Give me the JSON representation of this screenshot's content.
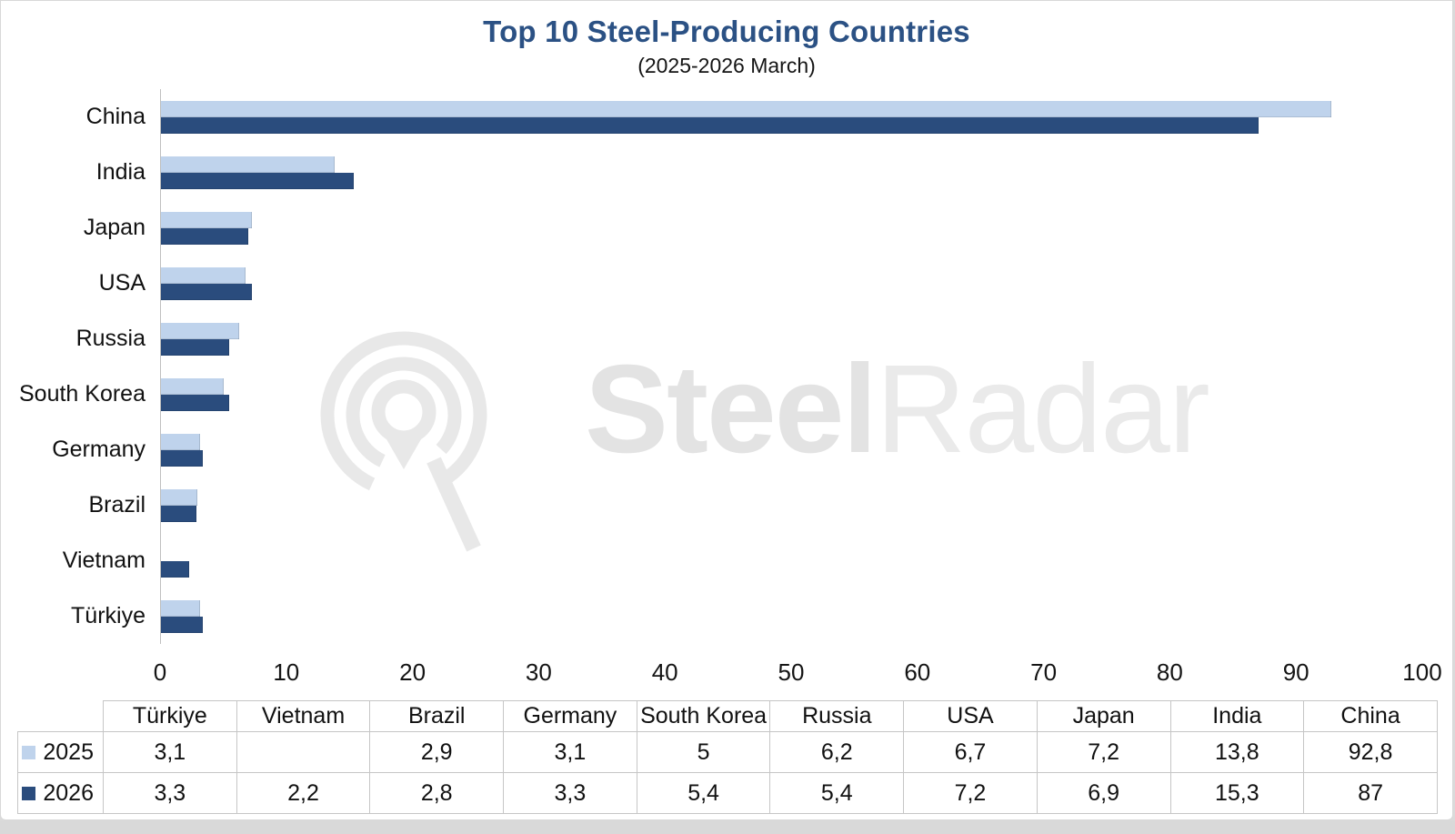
{
  "title": "Top 10 Steel-Producing Countries",
  "subtitle": "(2025-2026 March)",
  "watermark": {
    "text_bold": "Steel",
    "text_light": "Radar",
    "logo": "radar-q-logo"
  },
  "colors": {
    "title": "#2B5184",
    "series_2025": "#BFD3EC",
    "series_2026": "#2A4C7D",
    "axis_line": "#BFBFBF",
    "table_border": "#C6C6C6",
    "watermark": "#E8E8E8"
  },
  "chart_data": {
    "type": "bar",
    "orientation": "horizontal",
    "title": "Top 10 Steel-Producing Countries",
    "subtitle": "(2025-2026 March)",
    "categories": [
      "China",
      "India",
      "Japan",
      "USA",
      "Russia",
      "South Korea",
      "Germany",
      "Brazil",
      "Vietnam",
      "Türkiye"
    ],
    "series": [
      {
        "name": "2025",
        "color": "#BFD3EC",
        "values": [
          92.8,
          13.8,
          7.2,
          6.7,
          6.2,
          5,
          3.1,
          2.9,
          null,
          3.1
        ]
      },
      {
        "name": "2026",
        "color": "#2A4C7D",
        "values": [
          87,
          15.3,
          6.9,
          7.2,
          5.4,
          5.4,
          3.3,
          2.8,
          2.2,
          3.3
        ]
      }
    ],
    "xlim": [
      0,
      100
    ],
    "xticks": [
      0,
      10,
      20,
      30,
      40,
      50,
      60,
      70,
      80,
      90,
      100
    ],
    "grid": false,
    "legend_position": "data-table-left",
    "decimal_separator": ","
  },
  "table": {
    "column_headers": [
      "Türkiye",
      "Vietnam",
      "Brazil",
      "Germany",
      "South Korea",
      "Russia",
      "USA",
      "Japan",
      "India",
      "China"
    ],
    "rows": [
      {
        "label": "2025",
        "values": [
          "3,1",
          "",
          "2,9",
          "3,1",
          "5",
          "6,2",
          "6,7",
          "7,2",
          "13,8",
          "92,8"
        ]
      },
      {
        "label": "2026",
        "values": [
          "3,3",
          "2,2",
          "2,8",
          "3,3",
          "5,4",
          "5,4",
          "7,2",
          "6,9",
          "15,3",
          "87"
        ]
      }
    ]
  }
}
